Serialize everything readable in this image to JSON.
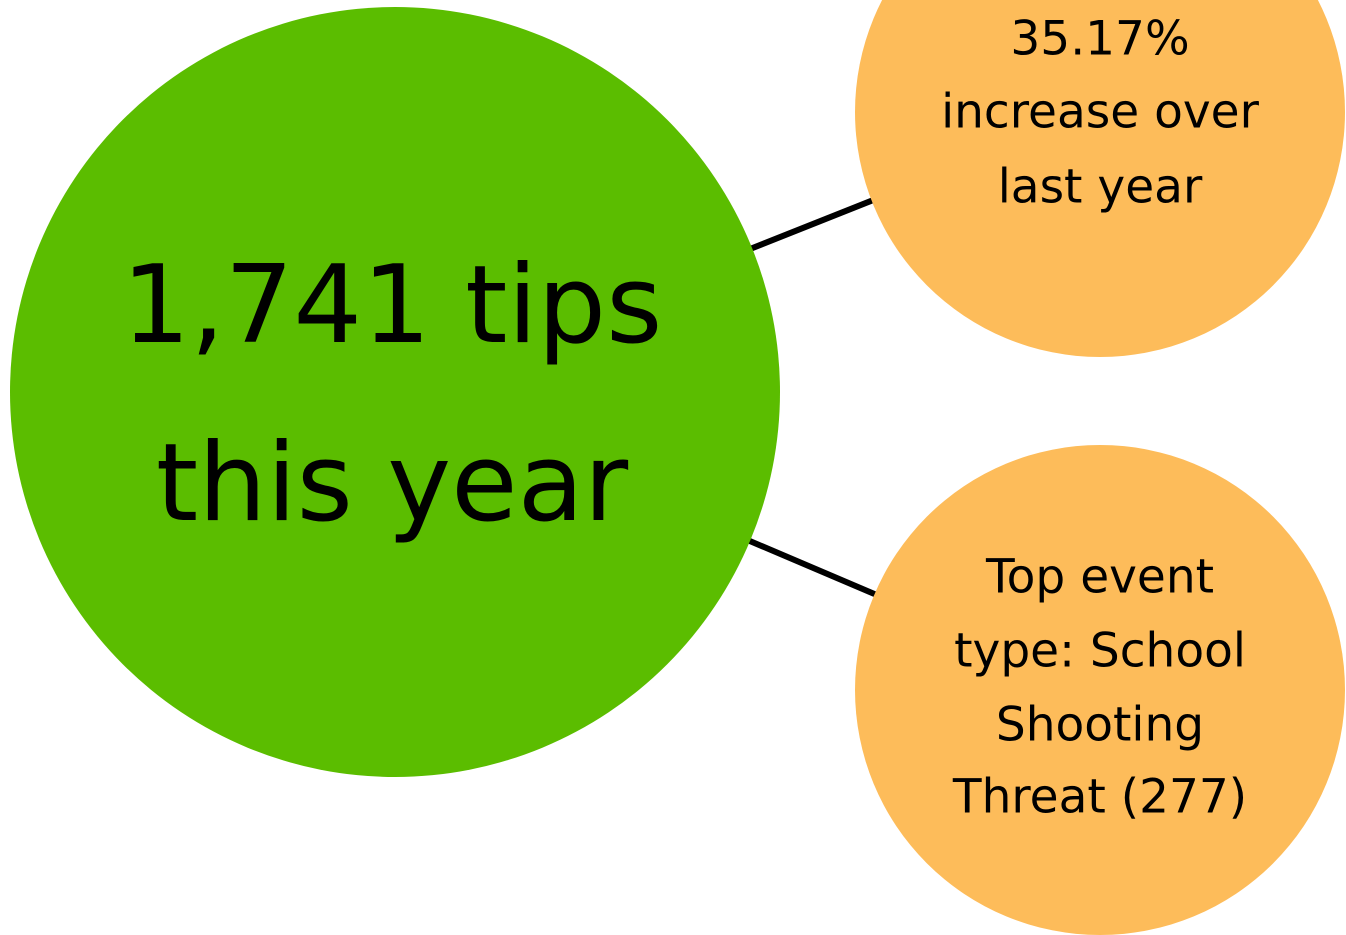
{
  "nodes": [
    {
      "lines": [
        "1,741 tips",
        "this year"
      ]
    },
    {
      "lines": [
        "35.17%",
        "increase over",
        "last year"
      ]
    },
    {
      "lines": [
        "Top event",
        "type: School",
        "Shooting",
        "Threat (277)"
      ]
    }
  ]
}
